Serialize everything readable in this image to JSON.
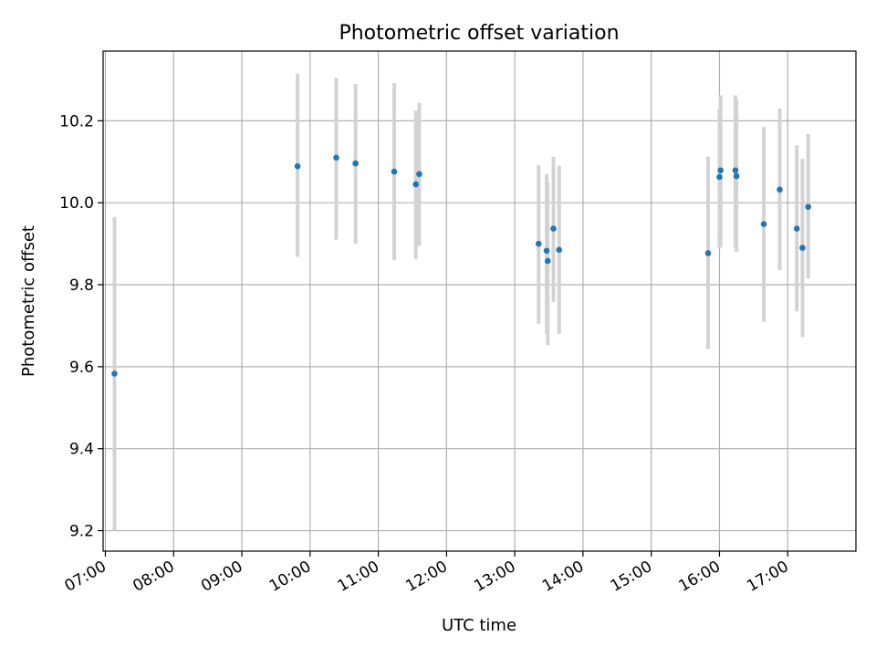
{
  "chart_data": {
    "type": "scatter",
    "title": "Photometric offset variation",
    "xlabel": "UTC time",
    "ylabel": "Photometric offset",
    "xlim": [
      "06:58",
      "18:00"
    ],
    "ylim": [
      9.15,
      10.37
    ],
    "grid": true,
    "colors": {
      "point": "#1f77b4",
      "errorbar": "#d3d3d3"
    },
    "x_ticks": [
      "07:00",
      "08:00",
      "09:00",
      "10:00",
      "11:00",
      "12:00",
      "13:00",
      "14:00",
      "15:00",
      "16:00",
      "17:00"
    ],
    "y_ticks": [
      "9.2",
      "9.4",
      "9.6",
      "9.8",
      "10.0",
      "10.2"
    ],
    "points": [
      {
        "time": "07:08",
        "y": 9.583,
        "ylow": 9.2,
        "yhigh": 9.965
      },
      {
        "time": "09:49",
        "y": 10.089,
        "ylow": 9.868,
        "yhigh": 10.315
      },
      {
        "time": "10:23",
        "y": 10.11,
        "ylow": 9.91,
        "yhigh": 10.305
      },
      {
        "time": "10:40",
        "y": 10.096,
        "ylow": 9.9,
        "yhigh": 10.29
      },
      {
        "time": "11:14",
        "y": 10.076,
        "ylow": 9.86,
        "yhigh": 10.292
      },
      {
        "time": "11:33",
        "y": 10.045,
        "ylow": 9.862,
        "yhigh": 10.225
      },
      {
        "time": "11:36",
        "y": 10.07,
        "ylow": 9.895,
        "yhigh": 10.243
      },
      {
        "time": "13:21",
        "y": 9.9,
        "ylow": 9.705,
        "yhigh": 10.092
      },
      {
        "time": "13:28",
        "y": 9.883,
        "ylow": 9.68,
        "yhigh": 10.07
      },
      {
        "time": "13:29",
        "y": 9.858,
        "ylow": 9.652,
        "yhigh": 10.05
      },
      {
        "time": "13:34",
        "y": 9.937,
        "ylow": 9.758,
        "yhigh": 10.112
      },
      {
        "time": "13:39",
        "y": 9.885,
        "ylow": 9.68,
        "yhigh": 10.09
      },
      {
        "time": "15:50",
        "y": 9.877,
        "ylow": 9.643,
        "yhigh": 10.113
      },
      {
        "time": "16:00",
        "y": 10.063,
        "ylow": 9.89,
        "yhigh": 10.228
      },
      {
        "time": "16:01",
        "y": 10.079,
        "ylow": 9.892,
        "yhigh": 10.262
      },
      {
        "time": "16:14",
        "y": 10.079,
        "ylow": 9.89,
        "yhigh": 10.262
      },
      {
        "time": "16:15",
        "y": 10.065,
        "ylow": 9.88,
        "yhigh": 10.25
      },
      {
        "time": "16:39",
        "y": 9.948,
        "ylow": 9.71,
        "yhigh": 10.185
      },
      {
        "time": "16:53",
        "y": 10.032,
        "ylow": 9.835,
        "yhigh": 10.23
      },
      {
        "time": "17:08",
        "y": 9.937,
        "ylow": 9.735,
        "yhigh": 10.14
      },
      {
        "time": "17:13",
        "y": 9.89,
        "ylow": 9.672,
        "yhigh": 10.107
      },
      {
        "time": "17:18",
        "y": 9.99,
        "ylow": 9.815,
        "yhigh": 10.168
      }
    ]
  }
}
